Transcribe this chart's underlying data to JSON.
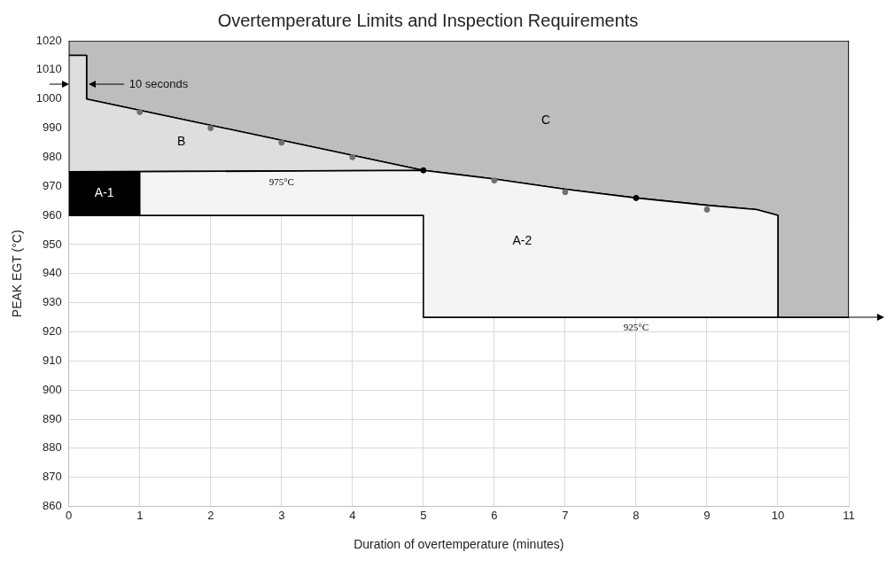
{
  "chart_data": {
    "type": "area",
    "title": "Overtemperature Limits and Inspection Requirements",
    "xlabel": "Duration of overtemperature (minutes)",
    "ylabel": "PEAK EGT (°C)",
    "xlim": [
      0,
      11
    ],
    "xticks": [
      0,
      1,
      2,
      3,
      4,
      5,
      6,
      7,
      8,
      9,
      10,
      11
    ],
    "ylim": [
      860,
      1020
    ],
    "yticks": [
      860,
      870,
      880,
      890,
      900,
      910,
      920,
      930,
      940,
      950,
      960,
      970,
      980,
      990,
      1000,
      1010,
      1020
    ],
    "grid": true,
    "legend": false,
    "series": [
      {
        "name": "A-2",
        "type": "area",
        "color": "#f4f4f4",
        "x": [
          1,
          5,
          6,
          7,
          8,
          9,
          9.7,
          10,
          10,
          5,
          5,
          1,
          1
        ],
        "values": [
          975,
          975.5,
          972.5,
          969,
          966,
          963.5,
          962,
          960,
          925,
          925,
          960,
          960,
          975
        ]
      },
      {
        "name": "B",
        "type": "area",
        "color": "#dedede",
        "x": [
          0,
          0.25,
          0.25,
          5,
          0,
          0
        ],
        "values": [
          1015,
          1015,
          1000,
          975.5,
          975,
          1015
        ]
      },
      {
        "name": "C",
        "type": "area",
        "color": "#bdbdbd",
        "x": [
          0,
          11,
          11,
          10,
          10,
          9.7,
          9,
          8,
          7,
          6,
          5,
          0.25,
          0.25,
          0,
          0
        ],
        "values": [
          1020,
          1020,
          925,
          925,
          960,
          962,
          963.5,
          966,
          969,
          972.5,
          975.5,
          1000,
          1015,
          1015,
          1020
        ]
      },
      {
        "name": "A-1",
        "type": "area",
        "color": "#000000",
        "x": [
          0,
          1,
          1,
          0,
          0
        ],
        "values": [
          975,
          975,
          960,
          960,
          975
        ]
      },
      {
        "type": "scatter",
        "marker": "circle",
        "colors": [
          "#707070",
          "#707070",
          "#707070",
          "#707070",
          "#000000",
          "#707070",
          "#707070",
          "#000000",
          "#707070"
        ],
        "x": [
          1,
          2,
          3,
          4,
          5,
          6,
          7,
          8,
          9
        ],
        "values": [
          995.5,
          990,
          985,
          980,
          975.5,
          972,
          968,
          966,
          962
        ]
      }
    ],
    "annotations": [
      "10 seconds",
      {
        "text": "975°C",
        "x": 3,
        "y": 975
      },
      {
        "text": "925°C",
        "x": 8,
        "y": 925
      }
    ]
  }
}
